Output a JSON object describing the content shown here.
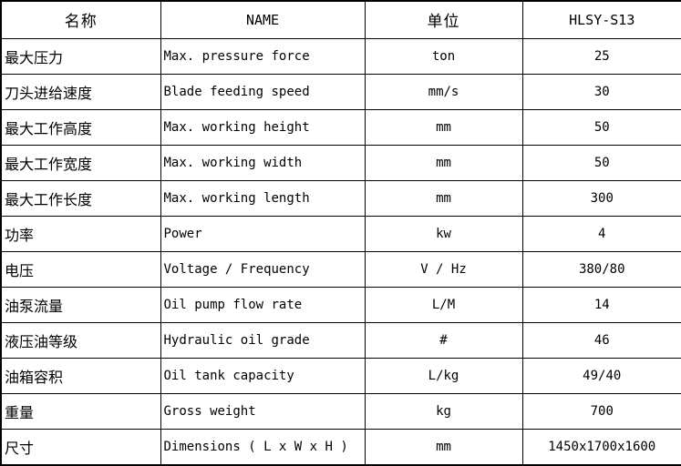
{
  "table": {
    "headers": [
      "名称",
      "NAME",
      "单位",
      "HLSY-S13"
    ],
    "rows": [
      {
        "cn": "最大压力",
        "en": "Max. pressure force",
        "unit": "ton",
        "value": "25"
      },
      {
        "cn": "刀头进给速度",
        "en": "Blade feeding speed",
        "unit": "mm/s",
        "value": "30"
      },
      {
        "cn": "最大工作高度",
        "en": "Max. working height",
        "unit": "mm",
        "value": "50"
      },
      {
        "cn": "最大工作宽度",
        "en": "Max. working width",
        "unit": "mm",
        "value": "50"
      },
      {
        "cn": "最大工作长度",
        "en": "Max. working length",
        "unit": "mm",
        "value": "300"
      },
      {
        "cn": "功率",
        "en": "Power",
        "unit": "kw",
        "value": "4"
      },
      {
        "cn": "电压",
        "en": "Voltage / Frequency",
        "unit": "V / Hz",
        "value": "380/80"
      },
      {
        "cn": "油泵流量",
        "en": "Oil pump flow rate",
        "unit": "L/M",
        "value": "14"
      },
      {
        "cn": "液压油等级",
        "en": "Hydraulic oil grade",
        "unit": "#",
        "value": "46"
      },
      {
        "cn": "油箱容积",
        "en": "Oil tank capacity",
        "unit": "L/kg",
        "value": "49/40"
      },
      {
        "cn": "重量",
        "en": "Gross weight",
        "unit": "kg",
        "value": "700"
      },
      {
        "cn": "尺寸",
        "en": "Dimensions ( L x W x H )",
        "unit": "mm",
        "value": "1450x1700x1600"
      }
    ],
    "colors": {
      "border": "#000000",
      "text": "#000000",
      "background": "#ffffff"
    }
  }
}
